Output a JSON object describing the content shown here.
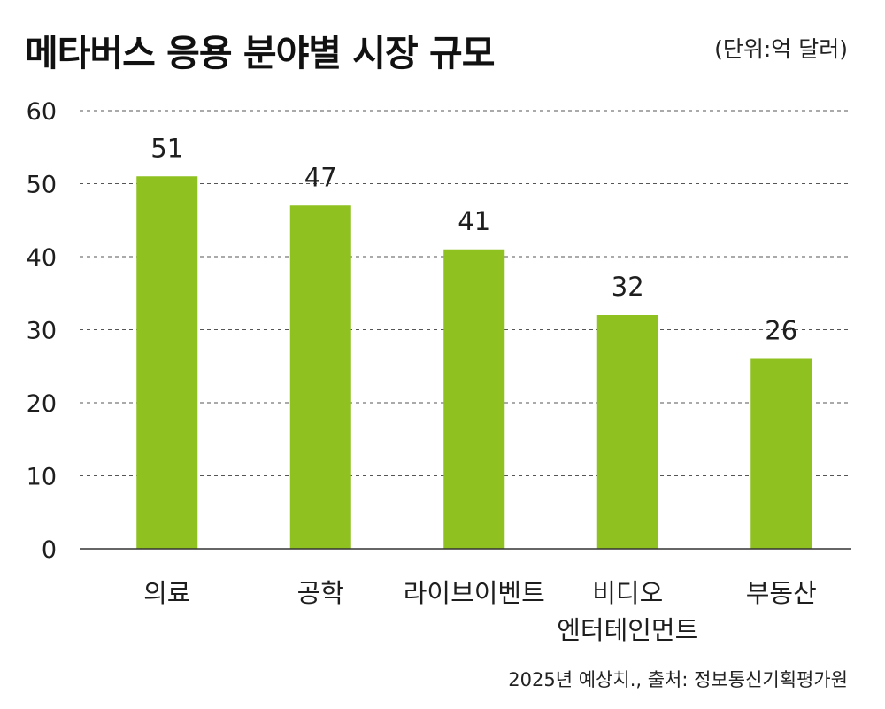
{
  "chart_data": {
    "type": "bar",
    "title": "메타버스 응용 분야별 시장 규모",
    "unit_label": "(단위:억 달러)",
    "categories": [
      [
        "의료"
      ],
      [
        "공학"
      ],
      [
        "라이브이벤트"
      ],
      [
        "비디오",
        "엔터테인먼트"
      ],
      [
        "부동산"
      ]
    ],
    "values": [
      51,
      47,
      41,
      32,
      26
    ],
    "ylim": [
      0,
      60
    ],
    "yticks": [
      "0",
      "10",
      "20",
      "30",
      "40",
      "50",
      "60"
    ],
    "grid": true,
    "bar_color": "#8fc121",
    "source": "2025년 예상치., 출처: 정보통신기획평가원"
  }
}
